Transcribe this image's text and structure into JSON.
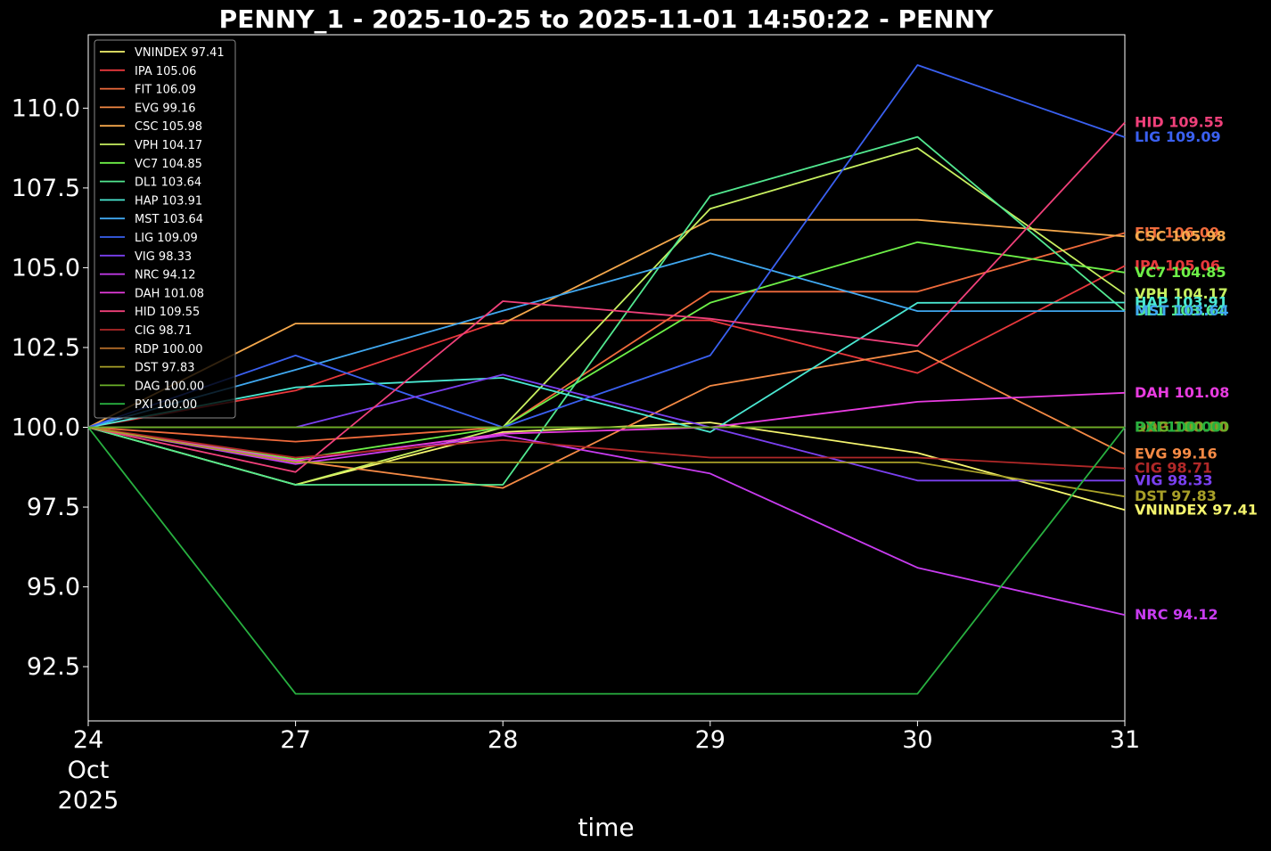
{
  "chart_data": {
    "type": "line",
    "title": "PENNY_1 - 2025-10-25 to 2025-11-01 14:50:22 - PENNY",
    "xlabel": "time",
    "ylabel": "",
    "x": [
      "2025-10-24",
      "2025-10-27",
      "2025-10-28",
      "2025-10-29",
      "2025-10-30",
      "2025-10-31"
    ],
    "x_tick_labels": [
      {
        "lines": [
          "24",
          "Oct",
          "2025"
        ]
      },
      {
        "lines": [
          "27"
        ]
      },
      {
        "lines": [
          "28"
        ]
      },
      {
        "lines": [
          "29"
        ]
      },
      {
        "lines": [
          "30"
        ]
      },
      {
        "lines": [
          "31"
        ]
      }
    ],
    "ylim": [
      90.8,
      112.3
    ],
    "y_ticks": [
      92.5,
      95.0,
      97.5,
      100.0,
      102.5,
      105.0,
      107.5,
      110.0
    ],
    "y_tick_labels": [
      "92.5",
      "95.0",
      "97.5",
      "100.0",
      "102.5",
      "105.0",
      "107.5",
      "110.0"
    ],
    "grid": false,
    "legend_position": "top-left",
    "background": "#000000",
    "series": [
      {
        "name": "VNINDEX",
        "legend": "VNINDEX 97.41",
        "end_label": "VNINDEX 97.41",
        "color": "#f5f56e",
        "values": [
          100.0,
          98.2,
          99.85,
          100.15,
          99.2,
          97.41
        ]
      },
      {
        "name": "IPA",
        "legend": "IPA 105.06",
        "end_label": "IPA 105.06",
        "color": "#e8383c",
        "values": [
          100.0,
          101.15,
          103.35,
          103.35,
          101.7,
          105.06
        ]
      },
      {
        "name": "FIT",
        "legend": "FIT 106.09",
        "end_label": "FIT 106.09",
        "color": "#f06b3c",
        "values": [
          100.0,
          99.55,
          100.0,
          104.25,
          104.25,
          106.09
        ]
      },
      {
        "name": "EVG",
        "legend": "EVG 99.16",
        "end_label": "EVG 99.16",
        "color": "#f58a45",
        "values": [
          100.0,
          98.95,
          98.1,
          101.3,
          102.4,
          99.16
        ]
      },
      {
        "name": "CSC",
        "legend": "CSC 105.98",
        "end_label": "CSC 105.98",
        "color": "#f5a84c",
        "values": [
          100.0,
          103.25,
          103.25,
          106.5,
          106.5,
          105.98
        ]
      },
      {
        "name": "VPH",
        "legend": "VPH 104.17",
        "end_label": "VPH 104.17",
        "color": "#c8f060",
        "values": [
          100.0,
          98.2,
          100.0,
          106.85,
          108.75,
          104.17
        ]
      },
      {
        "name": "VC7",
        "legend": "VC7 104.85",
        "end_label": "VC7 104.85",
        "color": "#6ef048",
        "values": [
          100.0,
          99.0,
          100.0,
          103.9,
          105.8,
          104.85
        ]
      },
      {
        "name": "DL1",
        "legend": "DL1 103.64",
        "end_label": "DL1 103.64",
        "color": "#52e890",
        "values": [
          100.0,
          98.2,
          98.2,
          107.25,
          109.1,
          103.64
        ]
      },
      {
        "name": "HAP",
        "legend": "HAP 103.91",
        "end_label": "HAP 103.91",
        "color": "#4ae8d2",
        "values": [
          100.0,
          101.25,
          101.55,
          99.85,
          103.9,
          103.91
        ]
      },
      {
        "name": "MST",
        "legend": "MST 103.64",
        "end_label": "MST 103.64",
        "color": "#40a8f0",
        "values": [
          100.0,
          101.8,
          103.65,
          105.45,
          103.64,
          103.64
        ]
      },
      {
        "name": "LIG",
        "legend": "LIG 109.09",
        "end_label": "LIG 109.09",
        "color": "#3a60f0",
        "values": [
          100.0,
          102.25,
          100.0,
          102.25,
          111.35,
          109.09
        ]
      },
      {
        "name": "VIG",
        "legend": "VIG 98.33",
        "end_label": "VIG 98.33",
        "color": "#7a40f0",
        "values": [
          100.0,
          100.0,
          101.65,
          100.0,
          98.33,
          98.33
        ]
      },
      {
        "name": "NRC",
        "legend": "NRC 94.12",
        "end_label": "NRC 94.12",
        "color": "#c83cf0",
        "values": [
          100.0,
          98.85,
          99.75,
          98.55,
          95.6,
          94.12
        ]
      },
      {
        "name": "DAH",
        "legend": "DAH 101.08",
        "end_label": "DAH 101.08",
        "color": "#e83ce0",
        "values": [
          100.0,
          98.95,
          99.8,
          100.0,
          100.8,
          101.08
        ]
      },
      {
        "name": "HID",
        "legend": "HID 109.55",
        "end_label": "HID 109.55",
        "color": "#f0407a",
        "values": [
          100.0,
          98.6,
          103.95,
          103.4,
          102.55,
          109.55
        ]
      },
      {
        "name": "CIG",
        "legend": "CIG 98.71",
        "end_label": "CIG 98.71",
        "color": "#b02828",
        "values": [
          100.0,
          99.05,
          99.6,
          99.05,
          99.05,
          98.71
        ]
      },
      {
        "name": "RDP",
        "legend": "RDP 100.00",
        "end_label": "RDP 100.00",
        "color": "#b06a28",
        "values": [
          100.0,
          100.0,
          100.0,
          100.0,
          100.0,
          100.0
        ]
      },
      {
        "name": "DST",
        "legend": "DST 97.83",
        "end_label": "DST 97.83",
        "color": "#a8a028",
        "values": [
          100.0,
          98.9,
          98.9,
          98.9,
          98.9,
          97.83
        ]
      },
      {
        "name": "DAG",
        "legend": "DAG 100.00",
        "end_label": "DAG 100.00",
        "color": "#6ab028",
        "values": [
          100.0,
          100.0,
          100.0,
          100.0,
          100.0,
          100.0
        ]
      },
      {
        "name": "PXI",
        "legend": "PXI 100.00",
        "end_label": "PXI 100.00",
        "color": "#28b040",
        "values": [
          100.0,
          91.65,
          91.65,
          91.65,
          91.65,
          100.0
        ]
      }
    ]
  }
}
